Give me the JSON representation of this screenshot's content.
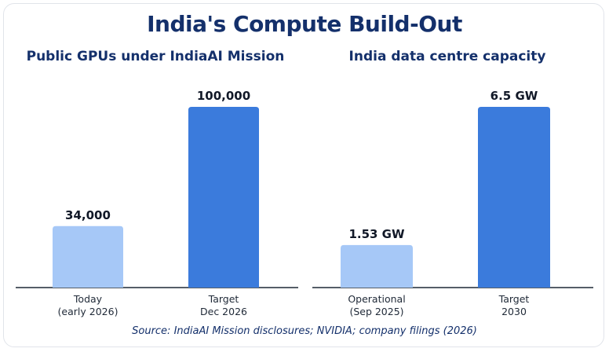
{
  "title": "India's Compute Build-Out",
  "source": "Source: IndiaAI Mission disclosures; NVIDIA; company filings (2026)",
  "colors": {
    "current": "#a6c8f7",
    "target": "#3b7bdc",
    "axis": "#1f2937",
    "title": "#14306b"
  },
  "chart_data": [
    {
      "type": "bar",
      "title": "Public GPUs under IndiaAI Mission",
      "categories": [
        "Today\n(early 2026)",
        "Target\nDec 2026"
      ],
      "values": [
        34000,
        100000
      ],
      "value_labels": [
        "34,000",
        "100,000"
      ],
      "xlabel": "",
      "ylabel": "",
      "ylim": [
        0,
        100000
      ],
      "grid": false
    },
    {
      "type": "bar",
      "title": "India data centre capacity",
      "categories": [
        "Operational\n(Sep 2025)",
        "Target\n2030"
      ],
      "values": [
        1.53,
        6.5
      ],
      "value_labels": [
        "1.53 GW",
        "6.5 GW"
      ],
      "xlabel": "",
      "ylabel": "",
      "ylim": [
        0,
        6.5
      ],
      "grid": false
    }
  ]
}
